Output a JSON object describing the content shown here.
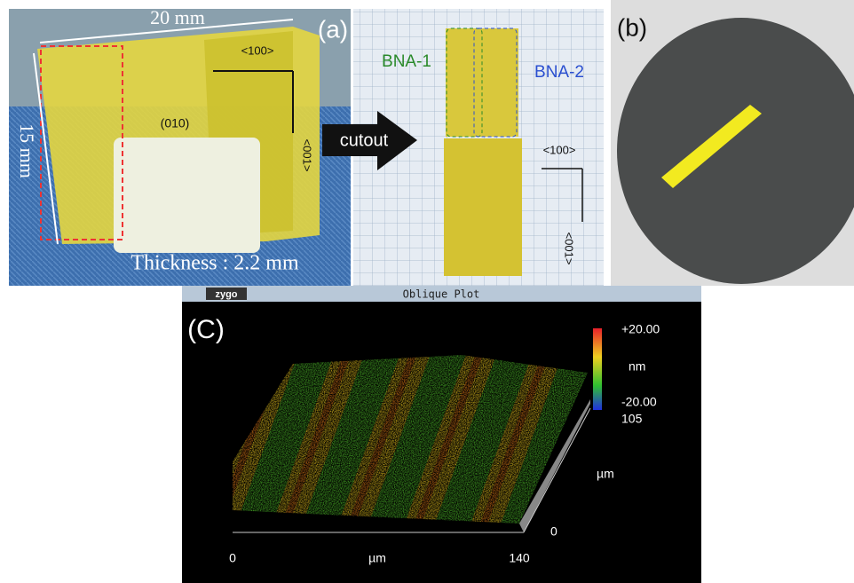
{
  "panel_a": {
    "label": "(a)",
    "width_label": "20 mm",
    "height_label": "15 mm",
    "face_label": "(010)",
    "thickness_label": "Thickness : 2.2 mm",
    "left_directions": [
      "<100>",
      "<001>"
    ],
    "arrow_label": "cutout",
    "samples": [
      "BNA-1",
      "BNA-2"
    ],
    "right_directions": [
      "<100>",
      "<001>"
    ]
  },
  "panel_b": {
    "label": "(b)"
  },
  "panel_c": {
    "window_brand": "zygo",
    "window_title": "Oblique Plot",
    "label": "(C)",
    "colorbar": [
      "+20.00",
      "nm",
      "-20.00"
    ],
    "y_axis": {
      "max": "105",
      "unit": "µm",
      "min": "0"
    },
    "x_axis": {
      "min": "0",
      "unit": "µm",
      "max": "140"
    }
  }
}
